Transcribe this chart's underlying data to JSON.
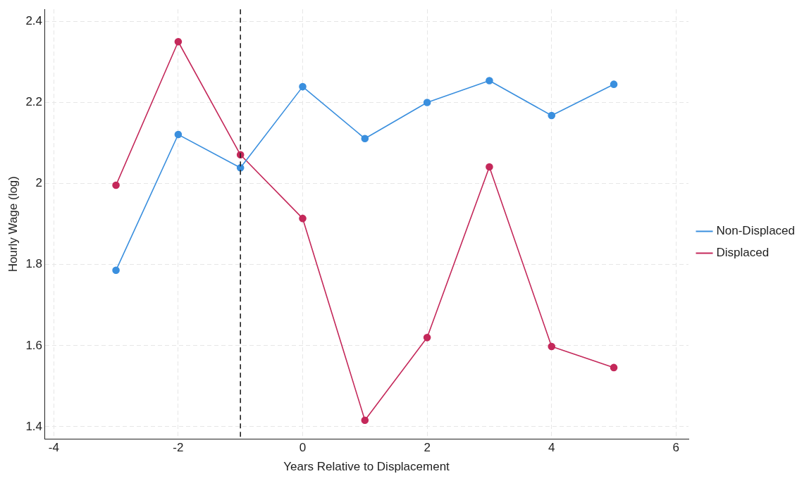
{
  "chart_data": {
    "type": "line",
    "xlabel": "Years Relative to Displacement",
    "ylabel": "Hourly Wage (log)",
    "x": [
      -3,
      -2,
      -1,
      0,
      1,
      2,
      3,
      4,
      5
    ],
    "series": [
      {
        "name": "Non-Displaced",
        "color": "#3a8fde",
        "values": [
          1.786,
          2.121,
          2.039,
          2.239,
          2.111,
          2.2,
          2.254,
          2.168,
          2.245
        ]
      },
      {
        "name": "Displaced",
        "color": "#c4285a",
        "values": [
          1.996,
          2.35,
          2.071,
          1.914,
          1.416,
          1.62,
          2.041,
          1.598,
          1.546
        ]
      }
    ],
    "xlim": [
      -4.15,
      6.2
    ],
    "ylim": [
      1.37,
      2.43
    ],
    "xticks": [
      -4,
      -2,
      0,
      2,
      4,
      6
    ],
    "yticks": [
      1.4,
      1.6,
      1.8,
      2,
      2.2,
      2.4
    ],
    "ref_lines": [
      {
        "axis": "x",
        "value": -1,
        "color": "#222222",
        "line_style": "dashed"
      }
    ],
    "grid": true,
    "legend": "right",
    "marker": "circle",
    "line_style": "solid"
  }
}
